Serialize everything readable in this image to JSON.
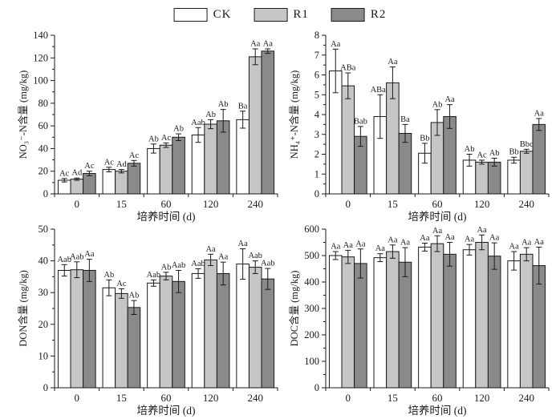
{
  "legend": {
    "items": [
      {
        "label": "CK",
        "color": "#ffffff"
      },
      {
        "label": "R1",
        "color": "#c6c6c6"
      },
      {
        "label": "R2",
        "color": "#8a8a8a"
      }
    ]
  },
  "axis_color": "#1a1a1a",
  "chart_data": [
    {
      "id": "no3n",
      "type": "bar",
      "ylabel": "NO₃⁻-N含量 (mg/kg)",
      "xlabel": "培养时间 (d)",
      "categories": [
        "0",
        "15",
        "60",
        "120",
        "240"
      ],
      "ylim": [
        0,
        140
      ],
      "ystep": 20,
      "grid": false,
      "series": [
        {
          "name": "CK",
          "values": [
            12,
            21.5,
            40,
            52,
            65.5
          ],
          "errors": [
            1.5,
            2,
            4,
            6.5,
            7.5
          ],
          "letters": [
            "Ac",
            "Ac",
            "Ab",
            "Aab",
            "Ba"
          ]
        },
        {
          "name": "R1",
          "values": [
            13,
            20,
            43,
            61.5,
            121
          ],
          "errors": [
            1,
            1.5,
            2,
            4,
            7
          ],
          "letters": [
            "Ad",
            "Ad",
            "Ac",
            "Ab",
            "Aa"
          ]
        },
        {
          "name": "R2",
          "values": [
            18,
            27,
            50,
            64.5,
            126
          ],
          "errors": [
            2,
            2.5,
            3,
            10,
            2
          ],
          "letters": [
            "Ac",
            "Ac",
            "Ab",
            "Ab",
            "Aa"
          ]
        }
      ]
    },
    {
      "id": "nh4n",
      "type": "bar",
      "ylabel": "NH₄⁺-N含量 (mg/kg)",
      "xlabel": "培养时间 (d)",
      "categories": [
        "0",
        "15",
        "60",
        "120",
        "240"
      ],
      "ylim": [
        0,
        8
      ],
      "ystep": 1,
      "grid": false,
      "series": [
        {
          "name": "CK",
          "values": [
            6.2,
            3.9,
            2.05,
            1.7,
            1.7
          ],
          "errors": [
            1.1,
            1.1,
            0.5,
            0.3,
            0.15
          ],
          "letters": [
            "Aa",
            "ABab",
            "Bb",
            "Ab",
            "Bb"
          ]
        },
        {
          "name": "R1",
          "values": [
            5.45,
            5.6,
            3.6,
            1.6,
            2.15
          ],
          "errors": [
            0.65,
            0.8,
            0.65,
            0.1,
            0.1
          ],
          "letters": [
            "ABa",
            "Aa",
            "Ab",
            "Ac",
            "Bbc"
          ]
        },
        {
          "name": "R2",
          "values": [
            2.9,
            3.05,
            3.9,
            1.6,
            3.5
          ],
          "errors": [
            0.5,
            0.45,
            0.6,
            0.2,
            0.3
          ],
          "letters": [
            "Bab",
            "Ba",
            "Aa",
            "Ab",
            "Aa"
          ]
        }
      ]
    },
    {
      "id": "don",
      "type": "bar",
      "ylabel": "DON含量 (mg/kg)",
      "xlabel": "培养时间 (d)",
      "categories": [
        "0",
        "15",
        "60",
        "120",
        "240"
      ],
      "ylim": [
        0,
        50
      ],
      "ystep": 10,
      "grid": false,
      "series": [
        {
          "name": "CK",
          "values": [
            37,
            31.5,
            33,
            36,
            39
          ],
          "errors": [
            1.8,
            2.5,
            1,
            1.5,
            4.8
          ],
          "letters": [
            "Aab",
            "Ab",
            "Aab",
            "Aab",
            "Aa"
          ]
        },
        {
          "name": "R1",
          "values": [
            37.2,
            29.7,
            35.2,
            40.3,
            38
          ],
          "errors": [
            2.5,
            1.5,
            1.2,
            1.8,
            2
          ],
          "letters": [
            "Aab",
            "Ac",
            "Ab",
            "Aa",
            "Aab"
          ]
        },
        {
          "name": "R2",
          "values": [
            37,
            25.3,
            33.5,
            36,
            34.3
          ],
          "errors": [
            3.5,
            2.2,
            3.5,
            3.6,
            3.3
          ],
          "letters": [
            "Aa",
            "Ab",
            "Aab",
            "Aa",
            "Aab"
          ]
        }
      ]
    },
    {
      "id": "doc",
      "type": "bar",
      "ylabel": "DOC含量 (mg/kg)",
      "xlabel": "培养时间 (d)",
      "categories": [
        "0",
        "15",
        "60",
        "120",
        "240"
      ],
      "ylim": [
        0,
        600
      ],
      "ystep": 100,
      "grid": false,
      "series": [
        {
          "name": "CK",
          "values": [
            500,
            492,
            532,
            522,
            480
          ],
          "errors": [
            15,
            15,
            15,
            20,
            35
          ],
          "letters": [
            "Aa",
            "Aa",
            "Aa",
            "Aa",
            "Aa"
          ]
        },
        {
          "name": "R1",
          "values": [
            495,
            515,
            545,
            550,
            505
          ],
          "errors": [
            25,
            25,
            30,
            28,
            25
          ],
          "letters": [
            "Aa",
            "Aa",
            "Aa",
            "Aa",
            "Aa"
          ]
        },
        {
          "name": "R2",
          "values": [
            470,
            475,
            505,
            498,
            462
          ],
          "errors": [
            55,
            55,
            45,
            50,
            70
          ],
          "letters": [
            "Aa",
            "Aa",
            "Aa",
            "Aa",
            "Aa"
          ]
        }
      ]
    }
  ]
}
